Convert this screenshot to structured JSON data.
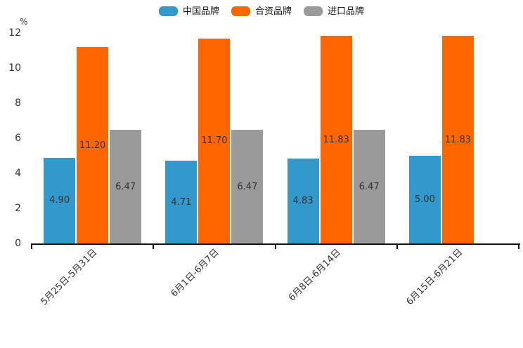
{
  "chart_data": {
    "type": "bar",
    "title": "",
    "ylabel": "%",
    "xlabel": "",
    "ylim": [
      0,
      12
    ],
    "yticks": [
      0,
      2,
      4,
      6,
      8,
      10,
      12
    ],
    "grid": false,
    "legend_position": "top",
    "value_labels": true,
    "categories": [
      "5月25日-5月31日",
      "6月1日-6月7日",
      "6月8日-6月14日",
      "6月15日-6月21日"
    ],
    "series": [
      {
        "key": "china-brand",
        "name": "中国品牌",
        "color": "#3398CC",
        "values": [
          4.9,
          4.71,
          4.83,
          5.0
        ]
      },
      {
        "key": "joint-venture-brand",
        "name": "合资品牌",
        "color": "#FF6600",
        "values": [
          11.2,
          11.7,
          11.83,
          11.83
        ]
      },
      {
        "key": "import-brand",
        "name": "进口品牌",
        "color": "#9A9A9A",
        "values": [
          6.47,
          6.47,
          6.47,
          null
        ]
      }
    ],
    "colors": {
      "axis": "#111111",
      "tick_text": "#333333",
      "value_text": "#333333",
      "legend_text": "#1a1a1a",
      "background": "#ffffff"
    }
  }
}
